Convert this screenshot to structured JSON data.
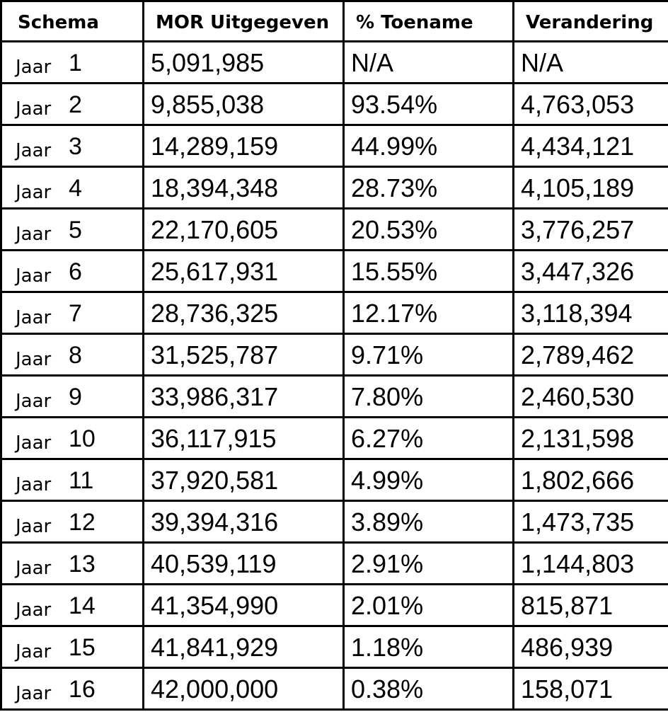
{
  "table": {
    "headers": [
      "Schema",
      "MOR Uitgegeven",
      "% Toename",
      "Verandering"
    ],
    "rows": [
      {
        "label": "Jaar",
        "year": "1",
        "issued": "5,091,985",
        "increase": "N/A",
        "change": "N/A"
      },
      {
        "label": "Jaar",
        "year": "2",
        "issued": "9,855,038",
        "increase": "93.54%",
        "change": "4,763,053"
      },
      {
        "label": "Jaar",
        "year": "3",
        "issued": "14,289,159",
        "increase": "44.99%",
        "change": "4,434,121"
      },
      {
        "label": "Jaar",
        "year": "4",
        "issued": "18,394,348",
        "increase": "28.73%",
        "change": "4,105,189"
      },
      {
        "label": "Jaar",
        "year": "5",
        "issued": "22,170,605",
        "increase": "20.53%",
        "change": "3,776,257"
      },
      {
        "label": "Jaar",
        "year": "6",
        "issued": "25,617,931",
        "increase": "15.55%",
        "change": "3,447,326"
      },
      {
        "label": "Jaar",
        "year": "7",
        "issued": "28,736,325",
        "increase": "12.17%",
        "change": "3,118,394"
      },
      {
        "label": "Jaar",
        "year": "8",
        "issued": "31,525,787",
        "increase": "9.71%",
        "change": "2,789,462"
      },
      {
        "label": "Jaar",
        "year": "9",
        "issued": "33,986,317",
        "increase": "7.80%",
        "change": "2,460,530"
      },
      {
        "label": "Jaar",
        "year": "10",
        "issued": "36,117,915",
        "increase": "6.27%",
        "change": "2,131,598"
      },
      {
        "label": "Jaar",
        "year": "11",
        "issued": "37,920,581",
        "increase": "4.99%",
        "change": "1,802,666"
      },
      {
        "label": "Jaar",
        "year": "12",
        "issued": "39,394,316",
        "increase": "3.89%",
        "change": "1,473,735"
      },
      {
        "label": "Jaar",
        "year": "13",
        "issued": "40,539,119",
        "increase": "2.91%",
        "change": "1,144,803"
      },
      {
        "label": "Jaar",
        "year": "14",
        "issued": "41,354,990",
        "increase": "2.01%",
        "change": "815,871"
      },
      {
        "label": "Jaar",
        "year": "15",
        "issued": "41,841,929",
        "increase": "1.18%",
        "change": "486,939"
      },
      {
        "label": "Jaar",
        "year": "16",
        "issued": "42,000,000",
        "increase": "0.38%",
        "change": "158,071"
      }
    ]
  }
}
